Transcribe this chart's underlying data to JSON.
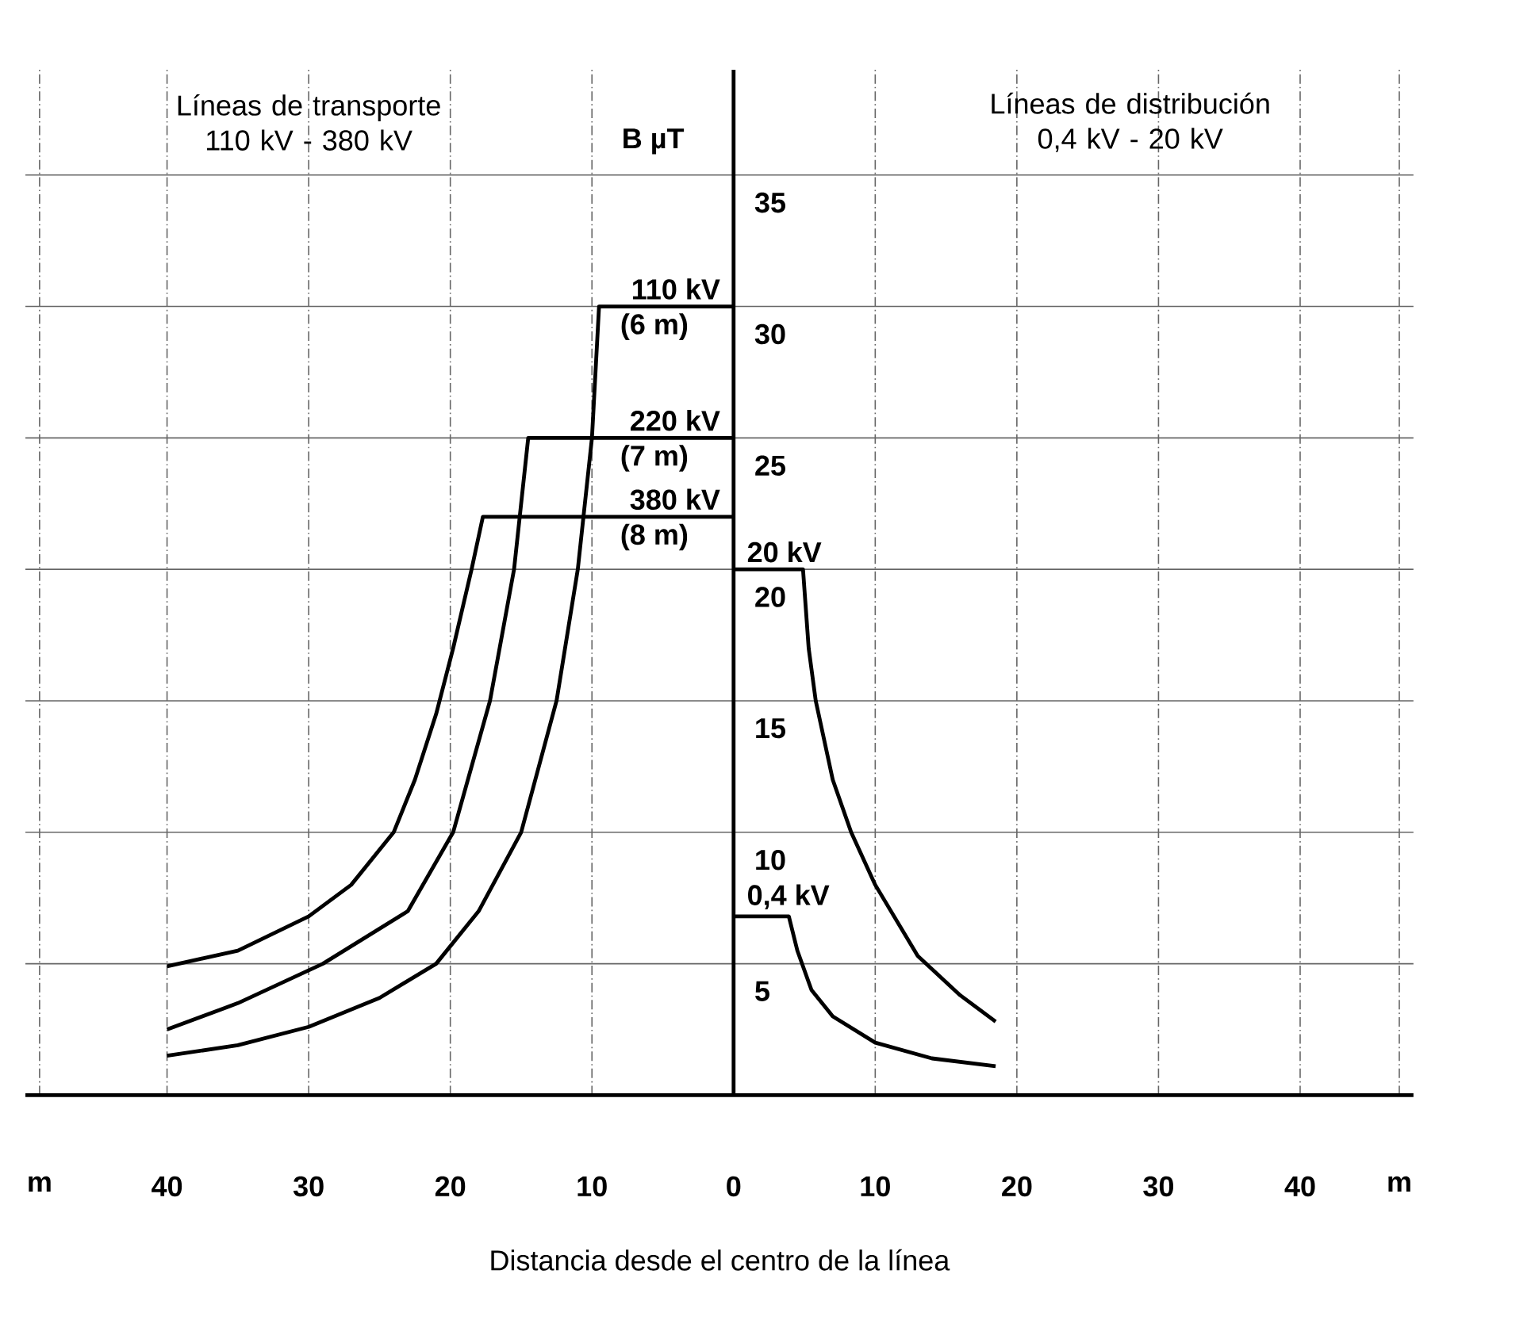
{
  "chart_data": {
    "type": "line",
    "xlabel": "Distancia desde el centro de la línea",
    "ylabel": "B µT",
    "xlim": [
      -50,
      48
    ],
    "ylim": [
      0,
      39
    ],
    "xticks": [
      {
        "value": -49,
        "label": "m"
      },
      {
        "value": -40,
        "label": "40"
      },
      {
        "value": -30,
        "label": "30"
      },
      {
        "value": -20,
        "label": "20"
      },
      {
        "value": -10,
        "label": "10"
      },
      0,
      10,
      20,
      30,
      40,
      {
        "value": 47,
        "label": "m"
      }
    ],
    "yticks": [
      5,
      10,
      15,
      20,
      25,
      30,
      35
    ],
    "grid": true,
    "legend": false,
    "marker": "none",
    "line_style": "solid",
    "series": [
      {
        "name": "110 kV",
        "color": "#000000",
        "x": [
          0,
          -9.5,
          -10,
          -11,
          -12.5,
          -15,
          -18,
          -21,
          -25,
          -30,
          -35,
          -40
        ],
        "values": [
          30,
          30,
          25,
          20,
          15,
          10,
          7,
          5,
          3.7,
          2.6,
          1.9,
          1.5
        ]
      },
      {
        "name": "220 kV",
        "color": "#000000",
        "x": [
          0,
          -14.5,
          -15.5,
          -17.2,
          -19.8,
          -23,
          -29,
          -35,
          -40
        ],
        "values": [
          25,
          25,
          20,
          15,
          10,
          7,
          5,
          3.5,
          2.5
        ]
      },
      {
        "name": "380 kV",
        "color": "#000000",
        "x": [
          0,
          -17.7,
          -18.5,
          -19.8,
          -21,
          -22.5,
          -24,
          -27,
          -30,
          -35,
          -40
        ],
        "values": [
          22,
          22,
          20,
          17,
          14.5,
          12,
          10,
          8,
          6.8,
          5.5,
          4.9
        ]
      },
      {
        "name": "20 kV",
        "color": "#000000",
        "x": [
          0,
          4.9,
          5.3,
          5.8,
          7,
          8.3,
          10,
          13,
          16,
          18.5
        ],
        "values": [
          20,
          20,
          17,
          15,
          12,
          10,
          8,
          5.3,
          3.8,
          2.8
        ]
      },
      {
        "name": "0,4 kV",
        "color": "#000000",
        "x": [
          0,
          3.9,
          4.5,
          5.5,
          7,
          10,
          14,
          18.5
        ],
        "values": [
          6.8,
          6.8,
          5.5,
          4,
          3,
          2,
          1.4,
          1.1
        ]
      }
    ],
    "annotations": [
      "Líneas de transporte\n110 kV - 380 kV",
      "Líneas de distribución\n0,4 kV - 20 kV",
      "(6 m)",
      "(7 m)",
      "(8 m)"
    ]
  }
}
